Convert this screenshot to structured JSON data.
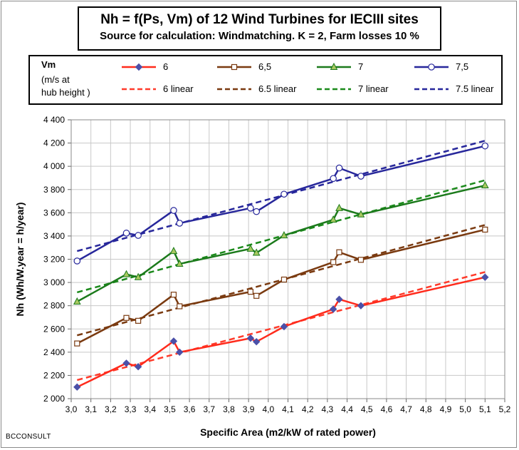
{
  "chart_data": {
    "type": "line",
    "title": "Nh = f(Ps, Vm) of 12 Wind Turbines for IECIII sites",
    "subtitle": "Source for calculation:  Windmatching. K = 2, Farm losses 10 %",
    "xlabel": "Specific Area (m2/kW of rated power)",
    "ylabel": "Nh (Wh/W.year = h/year)",
    "xlim": [
      3.0,
      5.2
    ],
    "ylim": [
      2000,
      4400
    ],
    "x_ticks": [
      "3,0",
      "3,1",
      "3,2",
      "3,3",
      "3,4",
      "3,5",
      "3,6",
      "3,7",
      "3,8",
      "3,9",
      "4,0",
      "4,1",
      "4,2",
      "4,3",
      "4,4",
      "4,5",
      "4,6",
      "4,7",
      "4,8",
      "4,9",
      "5,0",
      "5,1",
      "5,2"
    ],
    "y_ticks": [
      "2 000",
      "2 200",
      "2 400",
      "2 600",
      "2 800",
      "3 000",
      "3 200",
      "3 400",
      "3 600",
      "3 800",
      "4 000",
      "4 200",
      "4 400"
    ],
    "legend_title": "Vm",
    "legend_subtitle": [
      "(m/s at",
      "hub height )"
    ],
    "x": [
      3.03,
      3.28,
      3.34,
      3.52,
      3.55,
      3.91,
      3.94,
      4.08,
      4.33,
      4.36,
      4.47,
      5.1
    ],
    "series": [
      {
        "name": "6",
        "color": "#ff2b1c",
        "marker": "diamond",
        "marker_color": "#4b50a8",
        "values": [
          2100,
          2305,
          2275,
          2495,
          2400,
          2520,
          2490,
          2620,
          2770,
          2855,
          2800,
          3045
        ]
      },
      {
        "name": "6,5",
        "color": "#7a3a10",
        "marker": "square",
        "marker_color": "#ffffff",
        "values": [
          2475,
          2695,
          2670,
          2895,
          2795,
          2920,
          2885,
          3025,
          3175,
          3260,
          3195,
          3455
        ]
      },
      {
        "name": "7",
        "color": "#1b7a1b",
        "marker": "triangle",
        "marker_color": "#a8c860",
        "values": [
          2835,
          3070,
          3045,
          3270,
          3160,
          3290,
          3255,
          3405,
          3540,
          3640,
          3585,
          3835
        ]
      },
      {
        "name": "7,5",
        "color": "#27279b",
        "marker": "circle",
        "marker_color": "#ffffff",
        "values": [
          3185,
          3425,
          3405,
          3620,
          3510,
          3640,
          3610,
          3760,
          3895,
          3985,
          3915,
          4175
        ]
      }
    ],
    "trendlines": [
      {
        "name": "6 linear",
        "color": "#ff3b2b",
        "x": [
          3.03,
          5.1
        ],
        "values": [
          2160,
          3090
        ]
      },
      {
        "name": "6.5 linear",
        "color": "#7a3a10",
        "x": [
          3.03,
          5.1
        ],
        "values": [
          2545,
          3495
        ]
      },
      {
        "name": "7 linear",
        "color": "#1b8a1b",
        "x": [
          3.03,
          5.1
        ],
        "values": [
          2915,
          3880
        ]
      },
      {
        "name": "7.5 linear",
        "color": "#27279b",
        "x": [
          3.03,
          5.1
        ],
        "values": [
          3270,
          4220
        ]
      }
    ]
  },
  "footer": {
    "credit": "BCCONSULT"
  }
}
